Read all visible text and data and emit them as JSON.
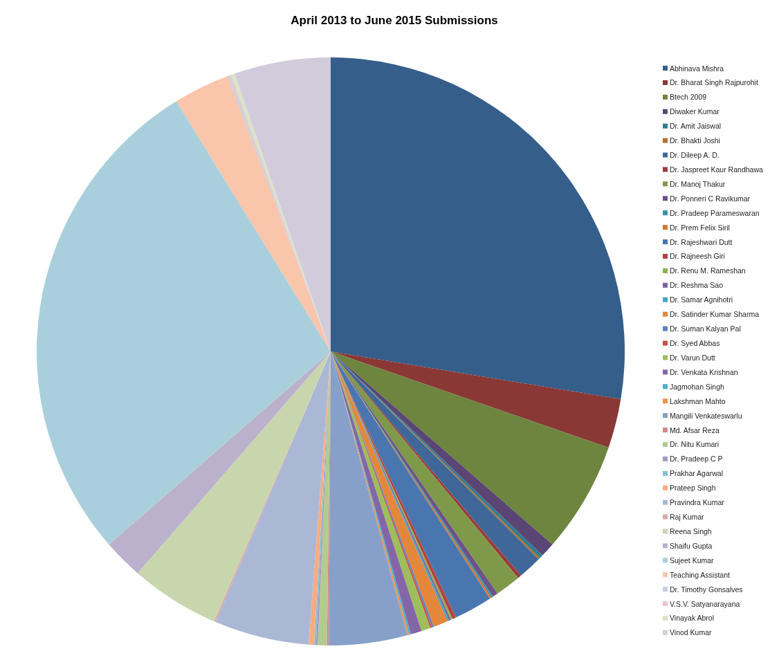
{
  "chart_data": {
    "type": "pie",
    "title": "April 2013 to June 2015 Submissions",
    "categories": [
      "Abhinava Mishra",
      "Dr. Bharat Singh Rajpurohit",
      "Btech 2009",
      "Diwaker Kumar",
      "Dr. Amit Jaiswal",
      "Dr. Bhakti Joshi",
      "Dr. Dileep A. D.",
      "Dr. Jaspreet Kaur Randhawa",
      "Dr. Manoj Thakur",
      "Dr. Ponneri C Ravikumar",
      "Dr. Pradeep Parameswaran",
      "Dr. Prem Felix Siril",
      "Dr. Rajeshwari Dutt",
      "Dr. Rajneesh Giri",
      "Dr. Renu M. Rameshan",
      "Dr. Reshma Sao",
      "Dr. Samar Agnihotri",
      "Dr. Satinder Kumar Sharma",
      "Dr. Suman Kalyan Pal",
      "Dr. Syed Abbas",
      "Dr. Varun Dutt",
      "Dr. Venkata Krishnan",
      "Jagmohan Singh",
      "Lakshman Mahto",
      "Mangili Venkateswarlu",
      "Md. Afsar Reza",
      "Dr. Nitu Kumari",
      "Dr. Pradeep C P",
      "Prakhar Agarwal",
      "Prateep Singh",
      "Pravindra Kumar",
      "Raj Kumar",
      "Reena Singh",
      "Shaifu Gupta",
      "Sujeet Kumar",
      "Teaching Assistant",
      "Dr. Timothy Gonsalves",
      "V.S.V. Satyanarayana",
      "Vinayak Abrol",
      "Vinod Kumar"
    ],
    "values": [
      27.6,
      2.7,
      6.1,
      0.8,
      0.2,
      0.1,
      1.3,
      0.2,
      1.4,
      0.3,
      0.1,
      0.1,
      2.1,
      0.2,
      0.1,
      0.1,
      0.1,
      0.8,
      0.1,
      0.1,
      0.5,
      0.6,
      0.1,
      0.1,
      4.3,
      0.1,
      0.5,
      0.1,
      0.1,
      0.3,
      5.2,
      0.1,
      4.9,
      2.2,
      27.6,
      3.1,
      0.1,
      0.1,
      0.2,
      5.3
    ],
    "colors": [
      "#355e8a",
      "#8a3836",
      "#6d853e",
      "#5a4574",
      "#317d8f",
      "#b56f2e",
      "#3f6899",
      "#9c3c3a",
      "#7f994a",
      "#6b5288",
      "#3a92a8",
      "#d3782e",
      "#4a76af",
      "#b44340",
      "#8fb050",
      "#7b62a0",
      "#45a6c4",
      "#e4873a",
      "#5784c2",
      "#c74f4c",
      "#9dbe5a",
      "#8466a7",
      "#4bb0cc",
      "#f19449",
      "#87a0ca",
      "#cc8a88",
      "#b3cb8f",
      "#a798bd",
      "#87bfd3",
      "#f7ac80",
      "#aab8d6",
      "#d9aaa9",
      "#c8d6ae",
      "#bcb1cc",
      "#aacfdc",
      "#f9c5ab",
      "#c6cfe3",
      "#e6c7c6",
      "#d8e4c8",
      "#d1cbdc"
    ],
    "legend": "right"
  }
}
